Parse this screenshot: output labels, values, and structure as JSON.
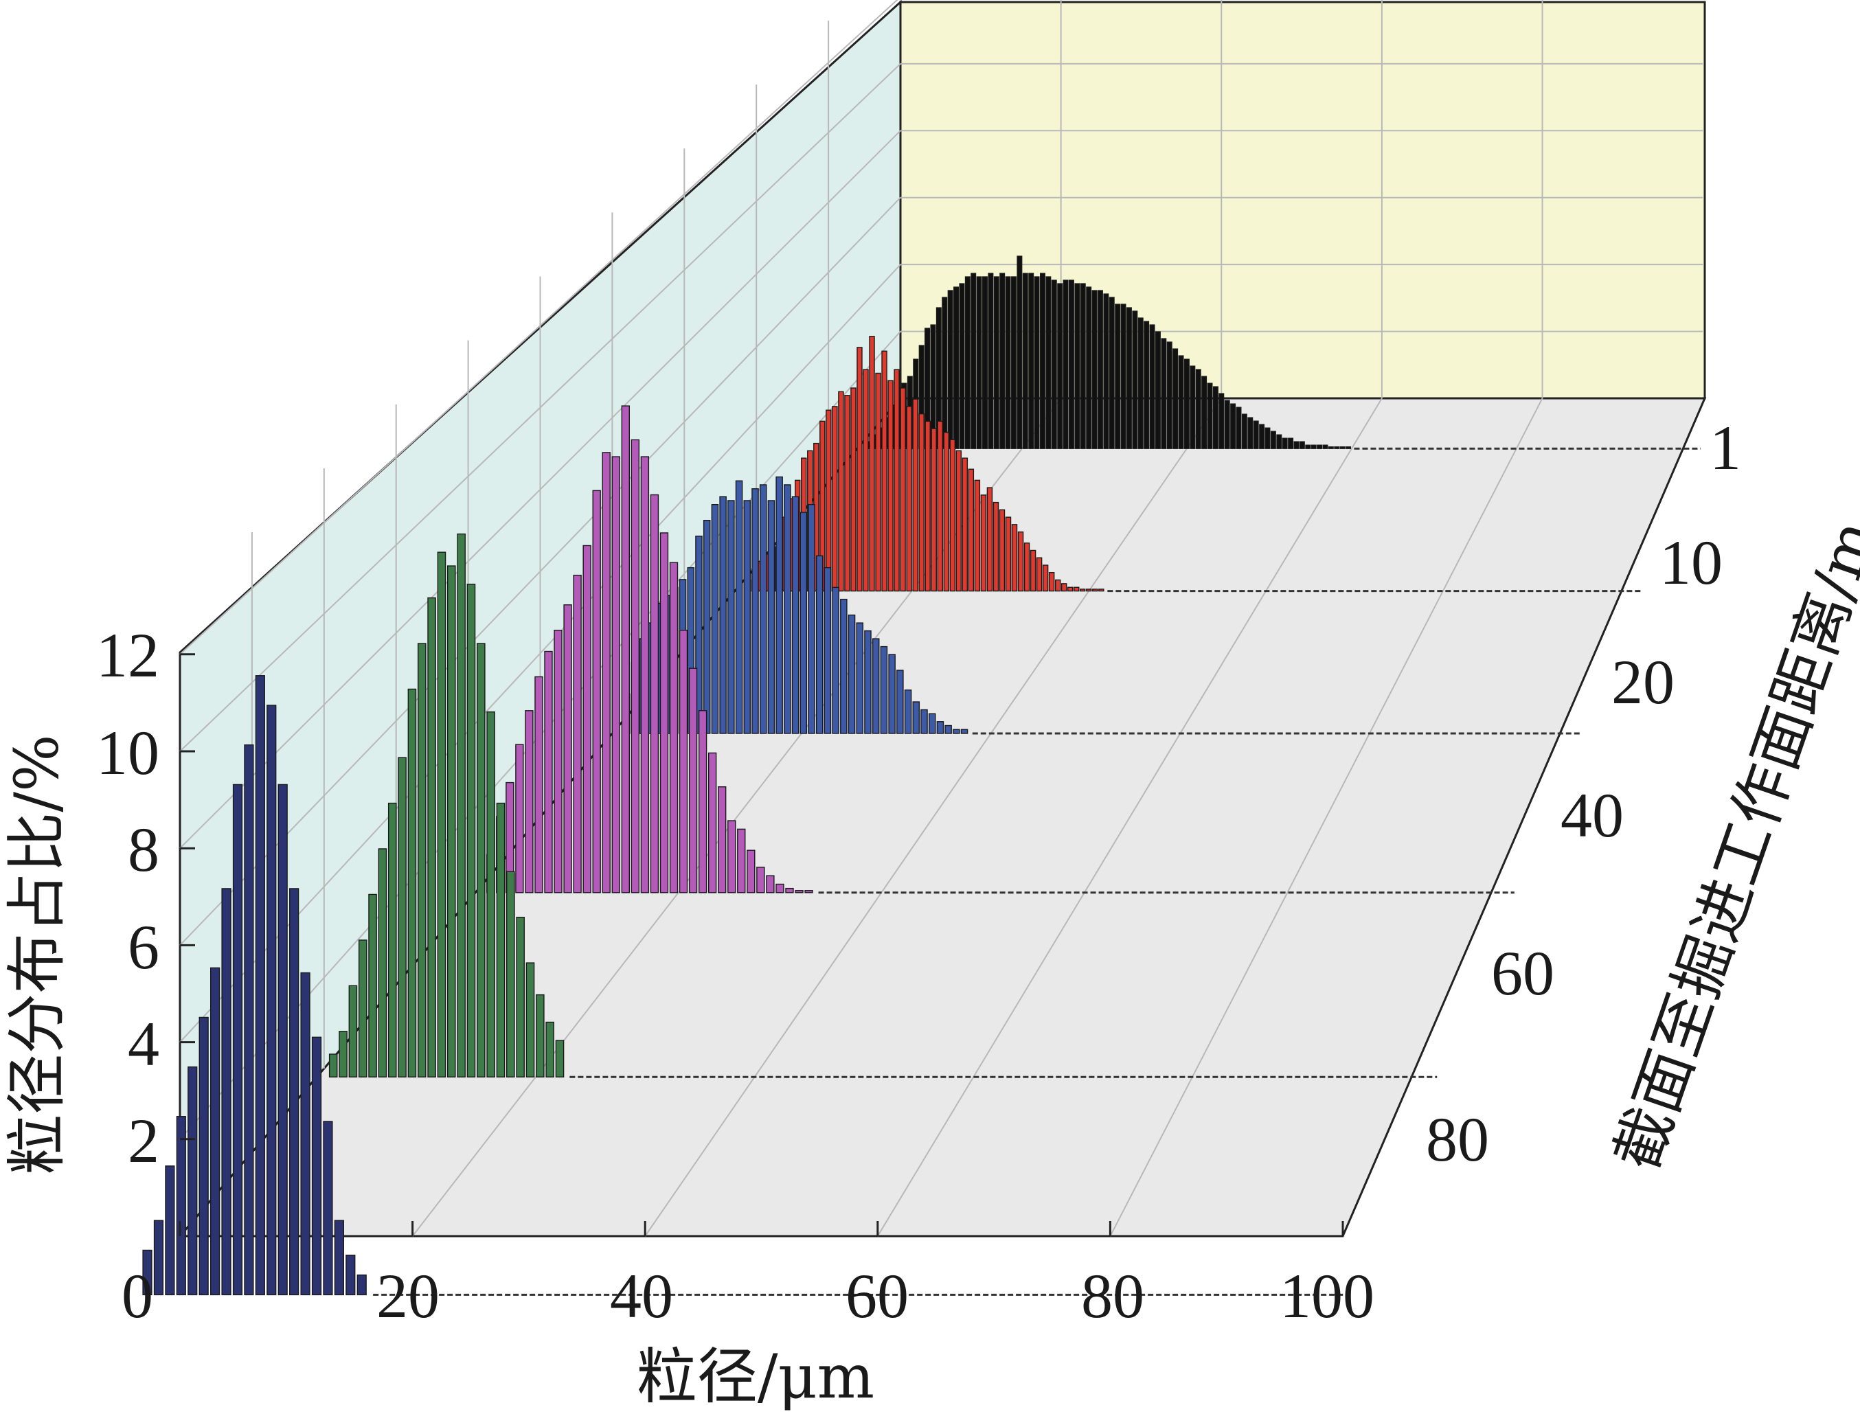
{
  "chart_data": {
    "type": "bar",
    "projection": "3d",
    "xlabel": "粒径/μm",
    "ylabel": "粒径分布占比/%",
    "zlabel": "截面至掘进工作面距离/m",
    "x_ticks": [
      "0",
      "20",
      "40",
      "60",
      "80",
      "100"
    ],
    "y_ticks": [
      "2",
      "4",
      "6",
      "8",
      "10",
      "12"
    ],
    "z_ticks": [
      "1",
      "10",
      "20",
      "40",
      "60",
      "80"
    ],
    "xlim": [
      0,
      100
    ],
    "ylim": [
      0,
      12
    ],
    "grid": true,
    "colors": {
      "back_wall": "#f6f6d2",
      "side_wall": "#dcefec",
      "floor": "#e9e9e9",
      "grid": "#b8b8b8",
      "frame": "#222222"
    },
    "series": [
      {
        "name": "1",
        "color": "#111111",
        "x_start": 1.5,
        "x_step": 0.7,
        "values": [
          0.2,
          0.4,
          0.6,
          0.9,
          1.2,
          1.5,
          1.9,
          2.1,
          2.6,
          3.0,
          3.5,
          3.6,
          4.1,
          4.4,
          4.6,
          4.7,
          4.8,
          5.0,
          5.1,
          5.0,
          5.0,
          5.1,
          5.0,
          5.1,
          5.0,
          5.0,
          5.6,
          5.1,
          5.1,
          5.0,
          5.1,
          5.0,
          4.9,
          4.8,
          4.9,
          4.9,
          4.8,
          4.8,
          4.7,
          4.6,
          4.6,
          4.5,
          4.4,
          4.2,
          4.2,
          4.1,
          4.0,
          3.8,
          3.7,
          3.6,
          3.4,
          3.2,
          3.1,
          2.9,
          2.7,
          2.6,
          2.4,
          2.3,
          2.1,
          1.9,
          1.8,
          1.6,
          1.4,
          1.3,
          1.2,
          1.0,
          0.9,
          0.8,
          0.7,
          0.6,
          0.5,
          0.4,
          0.3,
          0.3,
          0.2,
          0.2,
          0.1,
          0.1,
          0.1,
          0.1,
          0.05,
          0.05,
          0.05,
          0.05
        ]
      },
      {
        "name": "10",
        "color": "#e03a2e",
        "x_start": 1.5,
        "x_step": 0.7,
        "values": [
          0.3,
          0.6,
          0.8,
          1.0,
          1.2,
          1.6,
          2.0,
          2.5,
          3.0,
          3.6,
          3.8,
          4.0,
          4.6,
          4.9,
          5.0,
          5.4,
          5.3,
          5.5,
          6.6,
          6.0,
          6.9,
          5.9,
          6.5,
          5.7,
          6.0,
          5.5,
          5.0,
          5.2,
          4.8,
          4.6,
          4.4,
          4.6,
          4.3,
          4.1,
          3.8,
          3.6,
          3.3,
          3.0,
          2.6,
          2.8,
          2.4,
          2.2,
          2.0,
          1.8,
          1.6,
          1.3,
          1.1,
          0.9,
          0.7,
          0.5,
          0.3,
          0.2,
          0.1,
          0.1,
          0.05,
          0.05,
          0.05,
          0.05
        ]
      },
      {
        "name": "20",
        "color": "#3c5aa8",
        "x_start": 1.5,
        "x_step": 0.85,
        "values": [
          1.0,
          1.8,
          2.4,
          2.8,
          3.3,
          3.5,
          3.7,
          3.9,
          4.2,
          5.0,
          5.4,
          5.8,
          6.0,
          5.9,
          6.4,
          5.9,
          6.2,
          6.3,
          5.9,
          6.5,
          6.3,
          6.0,
          5.6,
          5.8,
          4.5,
          4.2,
          3.7,
          3.4,
          3.0,
          2.8,
          2.6,
          2.4,
          2.2,
          2.0,
          1.6,
          1.1,
          0.8,
          0.6,
          0.5,
          0.3,
          0.2,
          0.1,
          0.1
        ]
      },
      {
        "name": "40",
        "color": "#b45ab8",
        "x_start": 1.5,
        "x_step": 0.95,
        "values": [
          0.9,
          1.8,
          2.6,
          3.5,
          4.3,
          5.1,
          5.7,
          6.2,
          6.8,
          7.5,
          8.2,
          9.5,
          10.4,
          10.3,
          11.5,
          10.7,
          10.3,
          9.4,
          8.5,
          7.8,
          6.2,
          5.3,
          4.3,
          3.3,
          2.5,
          1.7,
          1.5,
          1.0,
          0.6,
          0.4,
          0.2,
          0.1,
          0.05,
          0.05
        ]
      },
      {
        "name": "60",
        "color": "#3e7d4a",
        "x_start": 1.5,
        "x_step": 0.9,
        "values": [
          0.5,
          1.0,
          2.0,
          3.0,
          4.0,
          5.0,
          6.0,
          7.0,
          8.5,
          9.5,
          10.5,
          11.5,
          11.2,
          11.9,
          10.8,
          9.5,
          8.0,
          6.0,
          4.5,
          3.5,
          2.5,
          1.8,
          1.2,
          0.8
        ]
      },
      {
        "name": "80",
        "color": "#2b3470",
        "x_start": 1.5,
        "x_step": 0.95,
        "values": [
          0.9,
          1.5,
          2.6,
          3.6,
          4.6,
          5.6,
          6.6,
          8.2,
          10.3,
          11.1,
          12.5,
          11.9,
          10.3,
          8.2,
          6.5,
          5.2,
          3.5,
          1.5,
          0.8,
          0.4
        ]
      }
    ]
  }
}
